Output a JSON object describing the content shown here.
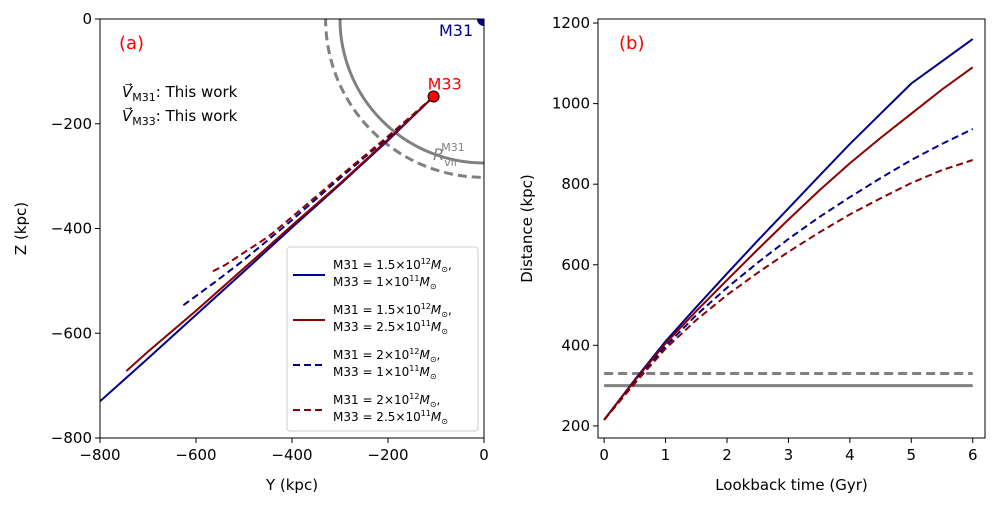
{
  "chart_data": [
    {
      "type": "line",
      "panel_label": "(a)",
      "xlabel": "Y (kpc)",
      "ylabel": "Z (kpc)",
      "xlim": [
        -800,
        0
      ],
      "ylim": [
        -800,
        0
      ],
      "xticks": [
        -800,
        -600,
        -400,
        -200,
        0
      ],
      "yticks": [
        0,
        -200,
        -400,
        -600,
        -800
      ],
      "xtick_labels": [
        "−800",
        "−600",
        "−400",
        "−200",
        "0"
      ],
      "ytick_labels": [
        "0",
        "−200",
        "−400",
        "−600",
        "−800"
      ],
      "velocity_text": [
        {
          "label": "V⃗",
          "sub": "M31",
          "rest": ": This work"
        },
        {
          "label": "V⃗",
          "sub": "M33",
          "rest": ": This work"
        }
      ],
      "points": [
        {
          "name": "M31",
          "x": 0,
          "y": 0,
          "color": "#00008b"
        },
        {
          "name": "M33",
          "x": -105,
          "y": -148,
          "color": "#ff0000"
        }
      ],
      "virial_radius": {
        "label": "R",
        "sub": "vir",
        "sup": "M31",
        "solid": 300,
        "dashed": 330,
        "color": "#808080"
      },
      "series": [
        {
          "name": "M31 = 1.5×10^12 M⊙, M33 = 1×10^11 M⊙",
          "color": "#00008b",
          "dash": "solid",
          "x": [
            -105,
            -200,
            -300,
            -400,
            -500,
            -600,
            -700,
            -800
          ],
          "y": [
            -148,
            -232,
            -316,
            -398,
            -482,
            -565,
            -648,
            -730
          ]
        },
        {
          "name": "M31 = 1.5×10^12 M⊙, M33 = 2.5×10^11 M⊙",
          "color": "#8b0000",
          "dash": "solid",
          "x": [
            -105,
            -200,
            -300,
            -400,
            -500,
            -600,
            -700,
            -745
          ],
          "y": [
            -148,
            -230,
            -314,
            -394,
            -476,
            -557,
            -635,
            -672
          ]
        },
        {
          "name": "M31 = 2×10^12 M⊙, M33 = 1×10^11 M⊙",
          "color": "#00008b",
          "dash": "dashed",
          "x": [
            -105,
            -200,
            -300,
            -400,
            -500,
            -560,
            -630
          ],
          "y": [
            -148,
            -226,
            -304,
            -384,
            -460,
            -502,
            -549
          ]
        },
        {
          "name": "M31 = 2×10^12 M⊙, M33 = 2.5×10^11 M⊙",
          "color": "#8b0000",
          "dash": "dashed",
          "x": [
            -105,
            -200,
            -300,
            -400,
            -450,
            -500,
            -540,
            -570
          ],
          "y": [
            -148,
            -224,
            -300,
            -378,
            -416,
            -446,
            -470,
            -484
          ]
        }
      ],
      "legend": [
        {
          "line1": "M31 = 1.5×10",
          "exp1": "12",
          "line2": "M33 = 1×10",
          "exp2": "11",
          "color": "#00008b",
          "dash": "solid"
        },
        {
          "line1": "M31 = 1.5×10",
          "exp1": "12",
          "line2": "M33 = 2.5×10",
          "exp2": "11",
          "color": "#8b0000",
          "dash": "solid"
        },
        {
          "line1": "M31 = 2×10",
          "exp1": "12",
          "line2": "M33 = 1×10",
          "exp2": "11",
          "color": "#00008b",
          "dash": "dashed"
        },
        {
          "line1": "M31 = 2×10",
          "exp1": "12",
          "line2": "M33 = 2.5×10",
          "exp2": "11",
          "color": "#8b0000",
          "dash": "dashed"
        }
      ],
      "legend_mass_symbol": "M",
      "legend_mass_sub": "⊙",
      "legend_position": "lower-right"
    },
    {
      "type": "line",
      "panel_label": "(b)",
      "xlabel": "Lookback time (Gyr)",
      "ylabel": "Distance (kpc)",
      "xlim": [
        -0.1,
        6.2
      ],
      "ylim": [
        170,
        1210
      ],
      "xticks": [
        0,
        1,
        2,
        3,
        4,
        5,
        6
      ],
      "yticks": [
        200,
        400,
        600,
        800,
        1000,
        1200
      ],
      "series": [
        {
          "name": "M31 1.5e12, M33 1e11",
          "color": "#00008b",
          "dash": "solid",
          "x": [
            0,
            0.5,
            1,
            1.5,
            2,
            2.5,
            3,
            3.5,
            4,
            4.5,
            5,
            5.5,
            6
          ],
          "y": [
            215,
            315,
            410,
            495,
            578,
            660,
            740,
            820,
            900,
            975,
            1050,
            1105,
            1160
          ]
        },
        {
          "name": "M31 1.5e12, M33 2.5e11",
          "color": "#8b0000",
          "dash": "solid",
          "x": [
            0,
            0.5,
            1,
            1.5,
            2,
            2.5,
            3,
            3.5,
            4,
            4.5,
            5,
            5.5,
            6
          ],
          "y": [
            215,
            313,
            405,
            485,
            562,
            638,
            712,
            784,
            852,
            915,
            975,
            1035,
            1090
          ]
        },
        {
          "name": "M31 2e12, M33 1e11",
          "color": "#00008b",
          "dash": "dashed",
          "x": [
            0,
            0.5,
            1,
            1.5,
            2,
            2.5,
            3,
            3.5,
            4,
            4.5,
            5,
            5.5,
            6
          ],
          "y": [
            215,
            308,
            398,
            475,
            543,
            605,
            664,
            718,
            768,
            815,
            860,
            900,
            937
          ]
        },
        {
          "name": "M31 2e12, M33 2.5e11",
          "color": "#8b0000",
          "dash": "dashed",
          "x": [
            0,
            0.5,
            1,
            1.5,
            2,
            2.5,
            3,
            3.5,
            4,
            4.5,
            5,
            5.5,
            6
          ],
          "y": [
            215,
            306,
            392,
            463,
            525,
            580,
            632,
            680,
            725,
            765,
            803,
            835,
            860
          ]
        }
      ],
      "hlines": [
        {
          "y": 300,
          "color": "#808080",
          "dash": "solid"
        },
        {
          "y": 330,
          "color": "#808080",
          "dash": "dashed"
        }
      ]
    }
  ]
}
